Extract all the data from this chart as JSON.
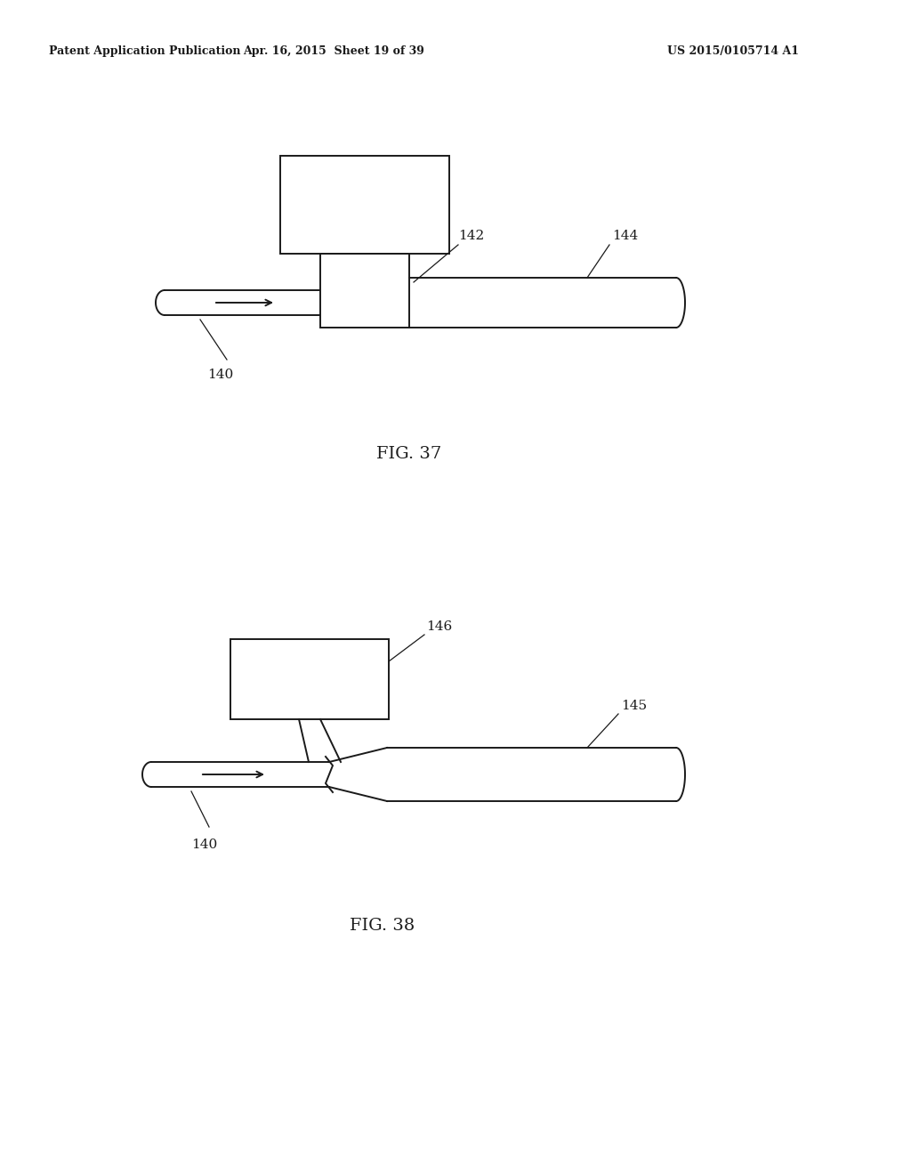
{
  "bg_color": "#ffffff",
  "line_color": "#1a1a1a",
  "header_left": "Patent Application Publication",
  "header_mid": "Apr. 16, 2015  Sheet 19 of 39",
  "header_right": "US 2015/0105714 A1",
  "fig37_label": "FIG. 37",
  "fig38_label": "FIG. 38",
  "lw": 1.4,
  "font_size_header": 9,
  "font_size_label": 11,
  "font_size_fig": 14
}
